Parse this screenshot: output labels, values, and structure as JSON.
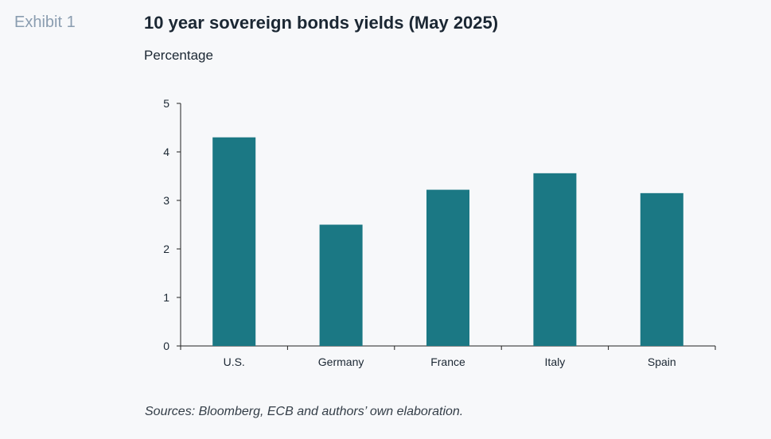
{
  "exhibit_label": "Exhibit 1",
  "colors": {
    "bar": "#1b7884",
    "axis": "#222222",
    "text": "#1b2733",
    "exhibit": "#8a9db0"
  },
  "source_note": "Sources: Bloomberg, ECB and authors’ own elaboration.",
  "chart_data": {
    "type": "bar",
    "title": "10 year sovereign bonds yields (May 2025)",
    "subtitle": "Percentage",
    "xlabel": "",
    "ylabel": "",
    "categories": [
      "U.S.",
      "Germany",
      "France",
      "Italy",
      "Spain"
    ],
    "values": [
      4.3,
      2.5,
      3.22,
      3.56,
      3.15
    ],
    "ylim": [
      0,
      5
    ],
    "yticks": [
      "0",
      "1",
      "2",
      "3",
      "4",
      "5"
    ],
    "grid": false,
    "legend": "none"
  }
}
